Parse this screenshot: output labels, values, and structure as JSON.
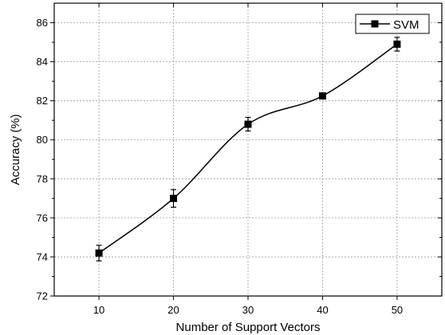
{
  "chart_data": {
    "type": "line",
    "title": "",
    "xlabel": "Number of  Support Vectors",
    "ylabel": "Accuracy (%)",
    "x_ticks": [
      "10",
      "20",
      "30",
      "40",
      "50"
    ],
    "y_ticks": [
      "72",
      "74",
      "76",
      "78",
      "80",
      "82",
      "84",
      "86"
    ],
    "xlim": [
      4,
      56
    ],
    "ylim": [
      72,
      87
    ],
    "grid": true,
    "legend_position": "top-right",
    "series": [
      {
        "name": "SVM",
        "color": "#000000",
        "marker": "square",
        "x": [
          10,
          20,
          30,
          40,
          50
        ],
        "y": [
          74.2,
          77.0,
          80.8,
          82.25,
          84.9
        ],
        "error": [
          0.4,
          0.45,
          0.35,
          0.1,
          0.35
        ]
      }
    ]
  }
}
